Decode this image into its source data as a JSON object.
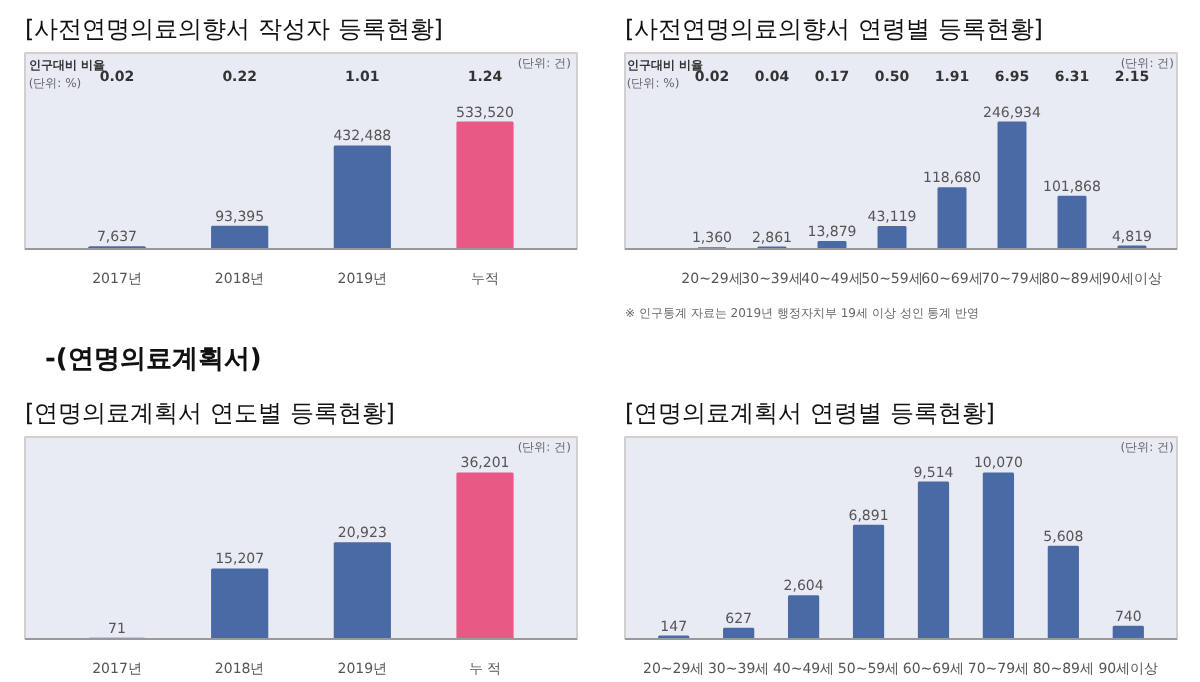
{
  "chart_data": [
    {
      "type": "bar",
      "title": "[사전연명의료의향서 작성자 등록현황]",
      "categories": [
        "2017년",
        "2018년",
        "2019년",
        "누적"
      ],
      "values": [
        7637,
        93395,
        432488,
        533520
      ],
      "colors": [
        "#4a6aa5",
        "#4a6aa5",
        "#4a6aa5",
        "#e85a85"
      ],
      "value_labels": [
        "7,637",
        "93,395",
        "432,488",
        "533,520"
      ],
      "annotations": [
        "(단위: 건)",
        "인구대비 비율",
        "(단위: %)",
        "0.02",
        "0.22",
        "1.01",
        "1.24"
      ]
    },
    {
      "type": "bar",
      "title": "[사전연명의료의향서 연령별 등록현황]",
      "categories": [
        "20~29세",
        "30~39세",
        "40~49세",
        "50~59세",
        "60~69세",
        "70~79세",
        "80~89세",
        "90세이상"
      ],
      "values": [
        1360,
        2861,
        13879,
        43119,
        118680,
        246934,
        101868,
        4819
      ],
      "color": "#4a6aa5",
      "value_labels": [
        "1,360",
        "2,861",
        "13,879",
        "43,119",
        "118,680",
        "246,934",
        "101,868",
        "4,819"
      ],
      "annotations": [
        "(단위: 건)",
        "인구대비 비율",
        "(단위: %)",
        "0.02",
        "0.04",
        "0.17",
        "0.50",
        "1.91",
        "6.95",
        "6.31",
        "2.15",
        "※ 인구통계 자료는 2019년 행정자치부 19세 이상 성인 통계 반영"
      ]
    },
    {
      "type": "bar",
      "subtitle": "-(연명의료계획서)",
      "title": "[연명의료계획서 연도별 등록현황]",
      "categories": [
        "2017년",
        "2018년",
        "2019년",
        "누 적"
      ],
      "values": [
        71,
        15207,
        20923,
        36201
      ],
      "colors": [
        "#4a6aa5",
        "#4a6aa5",
        "#4a6aa5",
        "#e85a85"
      ],
      "value_labels": [
        "71",
        "15,207",
        "20,923",
        "36,201"
      ],
      "annotations": [
        "(단위: 건)"
      ]
    },
    {
      "type": "bar",
      "title": "[연명의료계획서 연령별 등록현황]",
      "categories": [
        "20~29세",
        "30~39세",
        "40~49세",
        "50~59세",
        "60~69세",
        "70~79세",
        "80~89세",
        "90세이상"
      ],
      "values": [
        147,
        627,
        2604,
        6891,
        9514,
        10070,
        5608,
        740
      ],
      "color": "#4a6aa5",
      "value_labels": [
        "147",
        "627",
        "2,604",
        "6,891",
        "9,514",
        "10,070",
        "5,608",
        "740"
      ],
      "annotations": [
        "(단위: 건)"
      ]
    }
  ]
}
